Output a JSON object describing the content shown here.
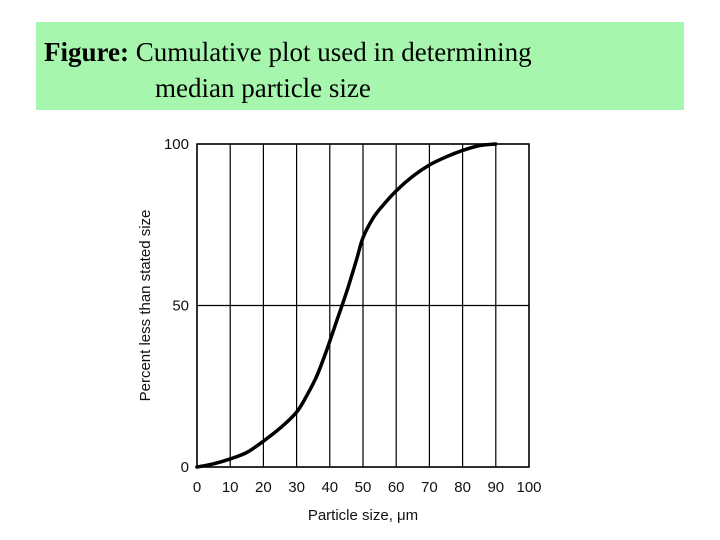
{
  "caption": {
    "lead": "Figure:",
    "line1": "Cumulative plot used in determining",
    "line2": "median particle size",
    "background": "#a6f7ad"
  },
  "chart_data": {
    "type": "line",
    "title": "",
    "xlabel": "Particle size, μm",
    "ylabel": "Percent less than stated size",
    "xlim": [
      0,
      100
    ],
    "ylim": [
      0,
      100
    ],
    "xticks": [
      0,
      10,
      20,
      30,
      40,
      50,
      60,
      70,
      80,
      90,
      100
    ],
    "yticks": [
      0,
      50,
      100
    ],
    "grid": {
      "vertical": true,
      "horizontal": true
    },
    "series": [
      {
        "x": [
          0,
          5,
          10,
          15,
          20,
          25,
          30,
          33,
          36,
          39,
          42,
          45,
          48,
          50,
          53,
          56,
          60,
          65,
          70,
          75,
          80,
          85,
          90
        ],
        "y": [
          0,
          1,
          2.5,
          4.5,
          8,
          12,
          17,
          22,
          28,
          36,
          45,
          54,
          64,
          71,
          77,
          81,
          85.5,
          90,
          93.5,
          96,
          98,
          99.5,
          100
        ],
        "color": "#000000"
      }
    ]
  }
}
